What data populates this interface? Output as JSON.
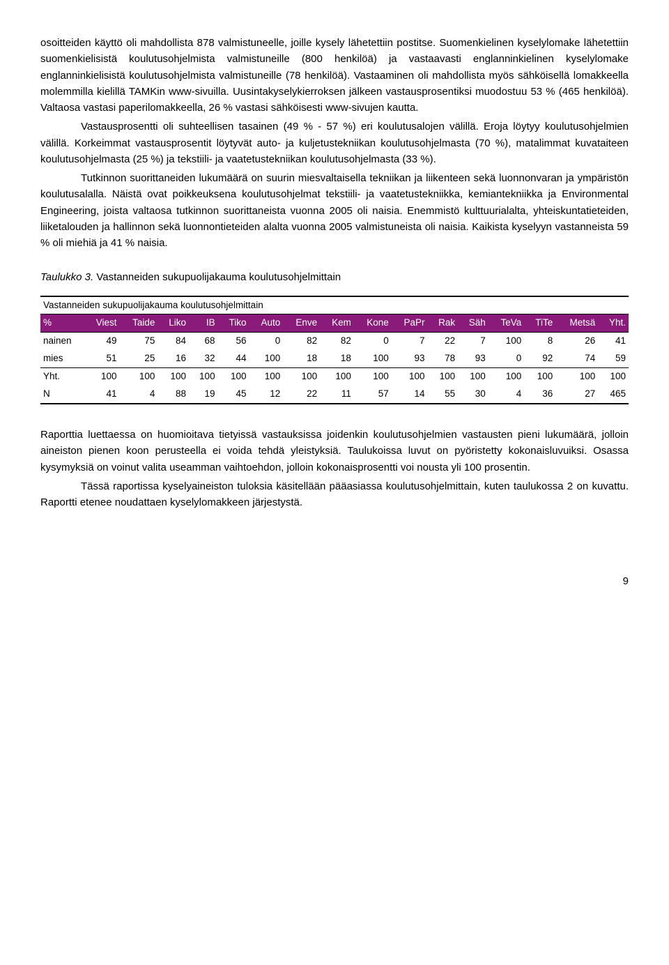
{
  "para1": "osoitteiden käyttö oli mahdollista 878 valmistuneelle, joille kysely lähetettiin postitse. Suomenkielinen kyselylomake lähetettiin suomenkielisistä koulutusohjelmista valmistuneille (800 henkilöä) ja vastaavasti englanninkielinen kyselylomake englanninkielisistä koulutusohjelmista valmistuneille (78 henkilöä). Vastaaminen oli mahdollista myös sähköisellä lomakkeella molemmilla kielillä TAMKin www-sivuilla. Uusintakyselykierroksen jälkeen vastausprosentiksi muodostuu 53 % (465 henkilöä). Valtaosa vastasi paperilomakkeella, 26 % vastasi sähköisesti www-sivujen kautta.",
  "para2": "Vastausprosentti oli suhteellisen tasainen (49 % - 57 %) eri koulutusalojen välillä. Eroja löytyy koulutusohjelmien välillä. Korkeimmat vastausprosentit löytyvät auto- ja kuljetustekniikan koulutusohjelmasta (70 %), matalimmat kuvataiteen koulutusohjelmasta (25 %) ja tekstiili- ja vaatetustekniikan koulutusohjelmasta (33 %).",
  "para3": "Tutkinnon suorittaneiden lukumäärä on suurin miesvaltaisella tekniikan ja liikenteen sekä luonnonvaran ja ympäristön koulutusalalla. Näistä ovat poikkeuksena koulutusohjelmat tekstiili- ja vaatetustekniikka, kemiantekniikka ja Environmental Engineering, joista valtaosa tutkinnon suorittaneista vuonna 2005 oli naisia. Enemmistö kulttuurialalta, yhteiskuntatieteiden, liiketalouden ja hallinnon sekä luonnontieteiden alalta vuonna 2005 valmistuneista oli naisia. Kaikista kyselyyn vastanneista 59 % oli miehiä ja 41 % naisia.",
  "caption_it": "Taulukko 3.",
  "caption_rest": " Vastanneiden sukupuolijakauma koulutusohjelmittain",
  "table": {
    "title": "Vastanneiden sukupuolijakauma koulutusohjelmittain",
    "headers": [
      "%",
      "Viest",
      "Taide",
      "Liko",
      "IB",
      "Tiko",
      "Auto",
      "Enve",
      "Kem",
      "Kone",
      "PaPr",
      "Rak",
      "Säh",
      "TeVa",
      "TiTe",
      "Metsä",
      "Yht."
    ],
    "rows": [
      {
        "label": "nainen",
        "vals": [
          "49",
          "75",
          "84",
          "68",
          "56",
          "0",
          "82",
          "82",
          "0",
          "7",
          "22",
          "7",
          "100",
          "8",
          "26",
          "41"
        ]
      },
      {
        "label": "mies",
        "vals": [
          "51",
          "25",
          "16",
          "32",
          "44",
          "100",
          "18",
          "18",
          "100",
          "93",
          "78",
          "93",
          "0",
          "92",
          "74",
          "59"
        ]
      },
      {
        "label": "Yht.",
        "vals": [
          "100",
          "100",
          "100",
          "100",
          "100",
          "100",
          "100",
          "100",
          "100",
          "100",
          "100",
          "100",
          "100",
          "100",
          "100",
          "100"
        ]
      },
      {
        "label": "N",
        "vals": [
          "41",
          "4",
          "88",
          "19",
          "45",
          "12",
          "22",
          "11",
          "57",
          "14",
          "55",
          "30",
          "4",
          "36",
          "27",
          "465"
        ]
      }
    ]
  },
  "para4": "Raporttia luettaessa on huomioitava tietyissä vastauksissa joidenkin koulutusohjelmien vastausten pieni lukumäärä, jolloin aineiston pienen koon perusteella ei voida tehdä yleistyksiä. Taulukoissa luvut on pyöristetty kokonaisluvuiksi. Osassa kysymyksiä on voinut valita useamman vaihtoehdon, jolloin kokonaisprosentti voi nousta yli 100 prosentin.",
  "para5": "Tässä raportissa kyselyaineiston tuloksia käsitellään pääasiassa koulutusohjelmittain, kuten taulukossa 2 on kuvattu. Raportti etenee noudattaen kyselylomakkeen järjestystä.",
  "pagenum": "9"
}
